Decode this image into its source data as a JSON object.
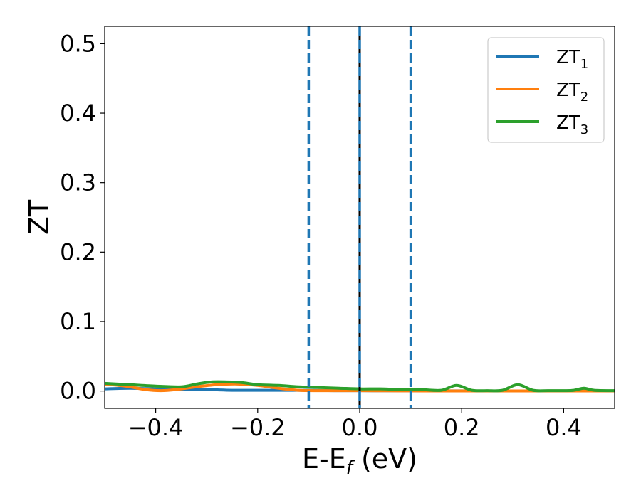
{
  "chart_data": {
    "type": "line",
    "xlabel": "E-E",
    "xlabel_sub": "f",
    "xlabel_unit": " (eV)",
    "ylabel": "ZT",
    "xlim": [
      -0.5,
      0.5
    ],
    "ylim": [
      -0.025,
      0.525
    ],
    "xticks": [
      -0.4,
      -0.2,
      0.0,
      0.2,
      0.4
    ],
    "xtick_labels": [
      "−0.4",
      "−0.2",
      "0.0",
      "0.2",
      "0.4"
    ],
    "yticks": [
      0.0,
      0.1,
      0.2,
      0.3,
      0.4,
      0.5
    ],
    "ytick_labels": [
      "0.0",
      "0.1",
      "0.2",
      "0.3",
      "0.4",
      "0.5"
    ],
    "grid": false,
    "legend_position": "top-right",
    "vertical_lines": [
      {
        "x": -0.1,
        "style": "dashed",
        "color": "#1f77b4"
      },
      {
        "x": 0.0,
        "style": "solid",
        "color": "#000000"
      },
      {
        "x": 0.0,
        "style": "dashed",
        "color": "#1f77b4"
      },
      {
        "x": 0.1,
        "style": "dashed",
        "color": "#1f77b4"
      }
    ],
    "series": [
      {
        "name": "ZT",
        "name_sub": "1",
        "color": "#1f77b4",
        "x": [
          -0.5,
          -0.45,
          -0.4,
          -0.35,
          -0.3,
          -0.25,
          -0.2,
          -0.15,
          -0.1,
          -0.05,
          0.0,
          0.05,
          0.1,
          0.15,
          0.2,
          0.25,
          0.3,
          0.35,
          0.4,
          0.45,
          0.5
        ],
        "y": [
          0.003,
          0.004,
          0.003,
          0.002,
          0.002,
          0.001,
          0.001,
          0.001,
          0.001,
          0.0005,
          0.0005,
          0.0003,
          0.0003,
          0.0002,
          0.0002,
          0.0001,
          0.0001,
          0.0001,
          0.0001,
          0.0001,
          0.0001
        ]
      },
      {
        "name": "ZT",
        "name_sub": "2",
        "color": "#ff7f0e",
        "x": [
          -0.5,
          -0.46,
          -0.42,
          -0.39,
          -0.36,
          -0.32,
          -0.28,
          -0.24,
          -0.2,
          -0.16,
          -0.12,
          -0.08,
          -0.04,
          0.0,
          0.05,
          0.1,
          0.15,
          0.2,
          0.3,
          0.4,
          0.5
        ],
        "y": [
          0.01,
          0.007,
          0.002,
          0.0005,
          0.002,
          0.006,
          0.009,
          0.01,
          0.008,
          0.004,
          0.001,
          0.0005,
          0.0005,
          0.0005,
          0.0003,
          0.0002,
          0.0001,
          0.0001,
          0.0001,
          0.0001,
          0.0001
        ]
      },
      {
        "name": "ZT",
        "name_sub": "3",
        "color": "#2ca02c",
        "x": [
          -0.5,
          -0.45,
          -0.4,
          -0.35,
          -0.32,
          -0.29,
          -0.26,
          -0.23,
          -0.2,
          -0.16,
          -0.12,
          -0.08,
          -0.04,
          0.0,
          0.04,
          0.08,
          0.12,
          0.16,
          0.19,
          0.22,
          0.25,
          0.28,
          0.31,
          0.34,
          0.37,
          0.4,
          0.42,
          0.44,
          0.46,
          0.5
        ],
        "y": [
          0.011,
          0.009,
          0.007,
          0.006,
          0.01,
          0.013,
          0.013,
          0.012,
          0.009,
          0.008,
          0.006,
          0.005,
          0.004,
          0.003,
          0.003,
          0.002,
          0.002,
          0.001,
          0.008,
          0.001,
          0.0005,
          0.001,
          0.009,
          0.001,
          0.0005,
          0.0005,
          0.001,
          0.004,
          0.001,
          0.0005
        ]
      }
    ]
  }
}
